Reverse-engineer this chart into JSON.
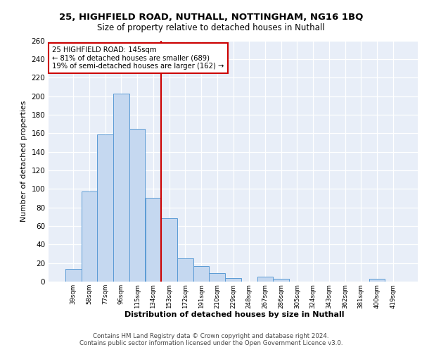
{
  "title_line1": "25, HIGHFIELD ROAD, NUTHALL, NOTTINGHAM, NG16 1BQ",
  "title_line2": "Size of property relative to detached houses in Nuthall",
  "xlabel": "Distribution of detached houses by size in Nuthall",
  "ylabel": "Number of detached properties",
  "categories": [
    "39sqm",
    "58sqm",
    "77sqm",
    "96sqm",
    "115sqm",
    "134sqm",
    "153sqm",
    "172sqm",
    "191sqm",
    "210sqm",
    "229sqm",
    "248sqm",
    "267sqm",
    "286sqm",
    "305sqm",
    "324sqm",
    "343sqm",
    "362sqm",
    "381sqm",
    "400sqm",
    "419sqm"
  ],
  "values": [
    14,
    97,
    159,
    203,
    165,
    90,
    68,
    25,
    17,
    9,
    4,
    0,
    5,
    3,
    0,
    0,
    0,
    0,
    0,
    3,
    0
  ],
  "bar_color": "#c5d8f0",
  "bar_edge_color": "#5b9bd5",
  "bg_color": "#e8eef8",
  "grid_color": "#ffffff",
  "vline_x": 5.5,
  "vline_color": "#cc0000",
  "annotation_text": "25 HIGHFIELD ROAD: 145sqm\n← 81% of detached houses are smaller (689)\n19% of semi-detached houses are larger (162) →",
  "annotation_box_color": "#ffffff",
  "annotation_box_edge": "#cc0000",
  "footer_text": "Contains HM Land Registry data © Crown copyright and database right 2024.\nContains public sector information licensed under the Open Government Licence v3.0.",
  "ylim": [
    0,
    260
  ],
  "yticks": [
    0,
    20,
    40,
    60,
    80,
    100,
    120,
    140,
    160,
    180,
    200,
    220,
    240,
    260
  ]
}
